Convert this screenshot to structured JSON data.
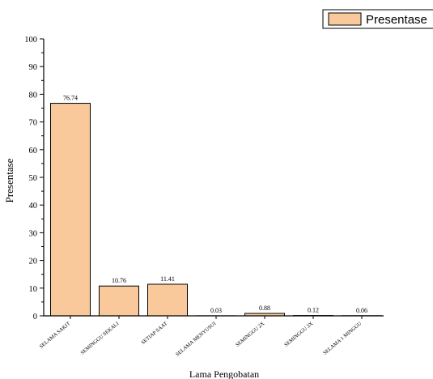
{
  "chart_data": {
    "type": "bar",
    "title": "",
    "xlabel": "Lama Pengobatan",
    "ylabel": "Presentase",
    "ylim": [
      0,
      100
    ],
    "y_ticks": [
      "0",
      "10",
      "20",
      "30",
      "40",
      "50",
      "60",
      "70",
      "80",
      "90",
      "100"
    ],
    "categories": [
      "SELAMA SAKIT",
      "SEMINGGU SEKALI",
      "SETIAP SAAT",
      "SELAMA MENYUSUI",
      "SEMINGGU 2X",
      "SEMINGGU 3X",
      "SELAMA 1 MINGGU"
    ],
    "series": [
      {
        "name": "Presentase",
        "values": [
          76.74,
          10.76,
          11.41,
          0.03,
          0.88,
          0.12,
          0.06
        ]
      }
    ],
    "value_labels": [
      "76.74",
      "10.76",
      "11.41",
      "0.03",
      "0.88",
      "0.12",
      "0.06"
    ],
    "legend": {
      "label": "Presentase",
      "placement": "top-right"
    },
    "colors": {
      "bar_fill": "#F9C99B",
      "bar_stroke": "#000000",
      "axis": "#000000"
    },
    "grid": false
  }
}
